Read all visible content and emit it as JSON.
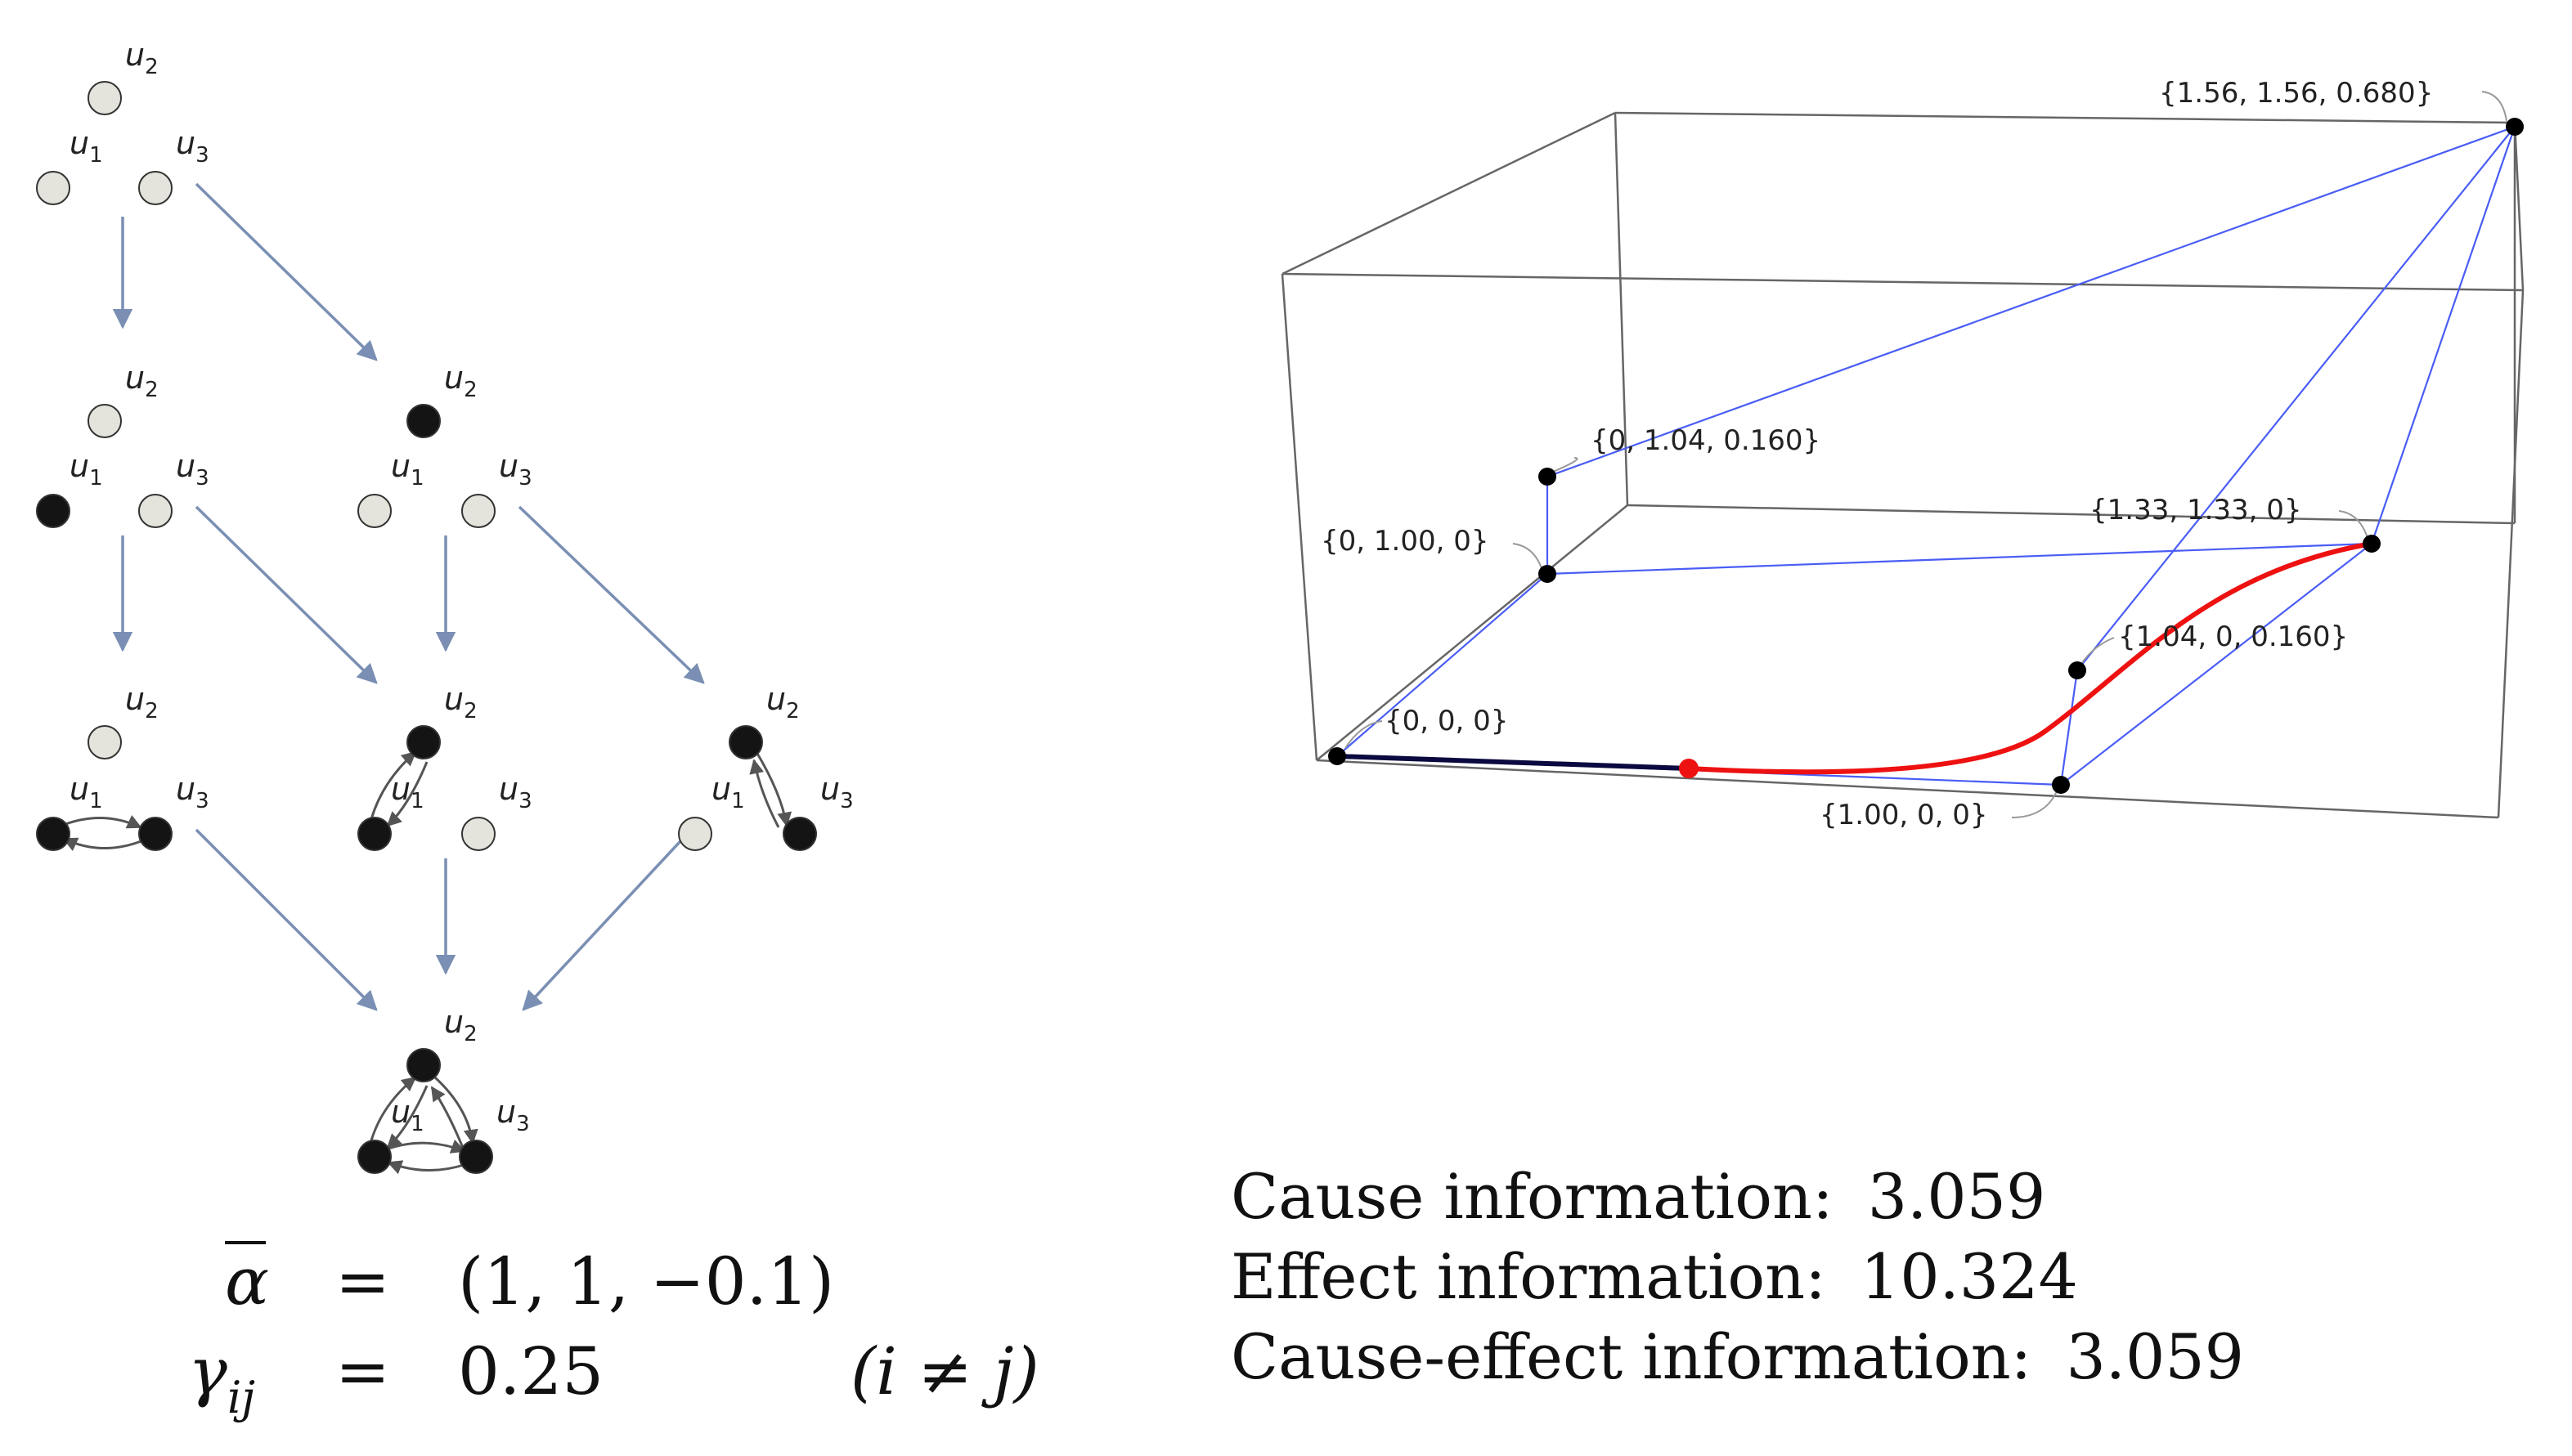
{
  "node_labels": {
    "u1": "u",
    "u1_sub": "1",
    "u2": "u",
    "u2_sub": "2",
    "u3": "u",
    "u3_sub": "3"
  },
  "colors": {
    "node_off": "#e4e4dc",
    "node_on": "#141414",
    "lattice_arrow": "#7a8fb3",
    "cube_edge": "#666666",
    "blue_line": "#4a5df5",
    "red_curve": "#ee1111"
  },
  "params": {
    "alpha_symbol": "α",
    "alpha_eq": "=",
    "alpha_value": "(1, 1, −0.1)",
    "gamma_symbol": "γ",
    "gamma_sub": "ij",
    "gamma_eq": "=",
    "gamma_value": "0.25",
    "gamma_condition": "(i ≠ j)"
  },
  "points": [
    "{1.56, 1.56, 0.680}",
    "{0, 1.04, 0.160}",
    "{0, 1.00, 0}",
    "{1.33, 1.33, 0}",
    "{1.04, 0, 0.160}",
    "{0, 0, 0}",
    "{1.00, 0, 0}"
  ],
  "info": [
    {
      "label": "Cause information:",
      "value": "3.059"
    },
    {
      "label": "Effect information:",
      "value": "10.324"
    },
    {
      "label": "Cause-effect information:",
      "value": "3.059"
    }
  ]
}
